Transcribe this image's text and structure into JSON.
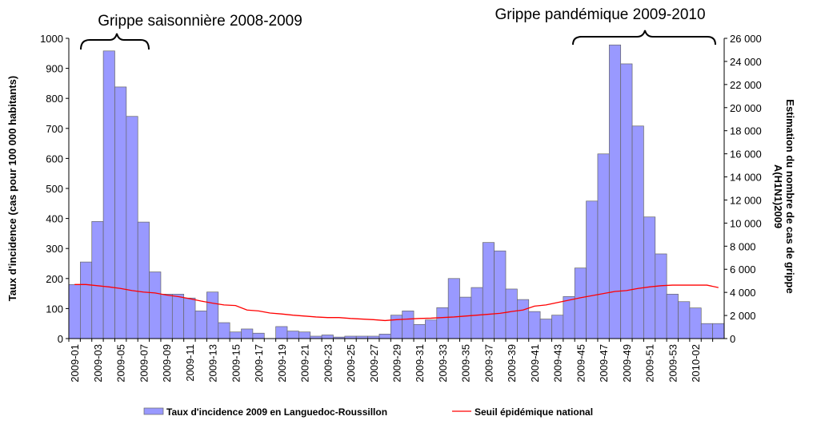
{
  "chart_data": {
    "type": "bar-line",
    "annotations": [
      "Grippe saisonnière 2008-2009",
      "Grippe pandémique 2009-2010"
    ],
    "ylabel": "Taux d'incidence (cas pour 100 000 habitants)",
    "y2label": [
      "Estimation du nombre de cas de grippe",
      "A(H1N1)2009"
    ],
    "categories": [
      "2009-01",
      null,
      "2009-03",
      null,
      "2009-05",
      null,
      "2009-07",
      null,
      "2009-09",
      null,
      "2009-11",
      null,
      "2009-13",
      null,
      "2009-15",
      null,
      "2009-17",
      null,
      "2009-19",
      null,
      "2009-21",
      null,
      "2009-23",
      null,
      "2009-25",
      null,
      "2009-27",
      null,
      "2009-29",
      null,
      "2009-31",
      null,
      "2009-33",
      null,
      "2009-35",
      null,
      "2009-37",
      null,
      "2009-39",
      null,
      "2009-41",
      null,
      "2009-43",
      null,
      "2009-45",
      null,
      "2009-47",
      null,
      "2009-49",
      null,
      "2009-51",
      null,
      "2009-53",
      null,
      "2010-02",
      null,
      null
    ],
    "series": [
      {
        "name": "Taux d'incidence 2009 en Languedoc-Roussillon",
        "type": "bar",
        "color": "#9999ff",
        "values": [
          180,
          255,
          390,
          958,
          838,
          740,
          388,
          222,
          148,
          148,
          135,
          92,
          155,
          53,
          22,
          32,
          18,
          0,
          40,
          25,
          22,
          8,
          12,
          5,
          8,
          8,
          8,
          15,
          78,
          92,
          47,
          62,
          103,
          200,
          138,
          170,
          320,
          292,
          165,
          130,
          90,
          65,
          78,
          140,
          235,
          458,
          615,
          978,
          915,
          708,
          405,
          282,
          148,
          123,
          102,
          50,
          50
        ]
      },
      {
        "name": "Seuil épidémique national",
        "type": "line",
        "color": "#ff0000",
        "values": [
          180,
          180,
          176,
          172,
          167,
          160,
          155,
          152,
          145,
          140,
          133,
          125,
          118,
          112,
          110,
          95,
          92,
          85,
          82,
          78,
          75,
          72,
          70,
          70,
          67,
          65,
          63,
          60,
          63,
          65,
          67,
          68,
          70,
          72,
          75,
          78,
          81,
          84,
          90,
          95,
          108,
          112,
          120,
          128,
          136,
          143,
          150,
          157,
          160,
          167,
          172,
          176,
          178,
          178,
          178,
          178,
          170
        ]
      }
    ],
    "ylim": [
      0,
      1000
    ],
    "yticks": [
      0,
      100,
      200,
      300,
      400,
      500,
      600,
      700,
      800,
      900,
      1000
    ],
    "y2lim": [
      0,
      26000
    ],
    "y2ticks": [
      0,
      {
        "value": 2000,
        "label": "2 000"
      },
      {
        "value": 4000,
        "label": "4 000"
      },
      {
        "value": 6000,
        "label": "6 000"
      },
      {
        "value": 8000,
        "label": "8 000"
      },
      {
        "value": 10000,
        "label": "10 000"
      },
      {
        "value": 12000,
        "label": "12 000"
      },
      {
        "value": 14000,
        "label": "14 000"
      },
      {
        "value": 16000,
        "label": "16 000"
      },
      {
        "value": 18000,
        "label": "18 000"
      },
      {
        "value": 20000,
        "label": "20 000"
      },
      {
        "value": 22000,
        "label": "22 000"
      },
      {
        "value": 24000,
        "label": "24 000"
      },
      {
        "value": 26000,
        "label": "26 000"
      }
    ],
    "grid": false,
    "legend": "bottom"
  }
}
